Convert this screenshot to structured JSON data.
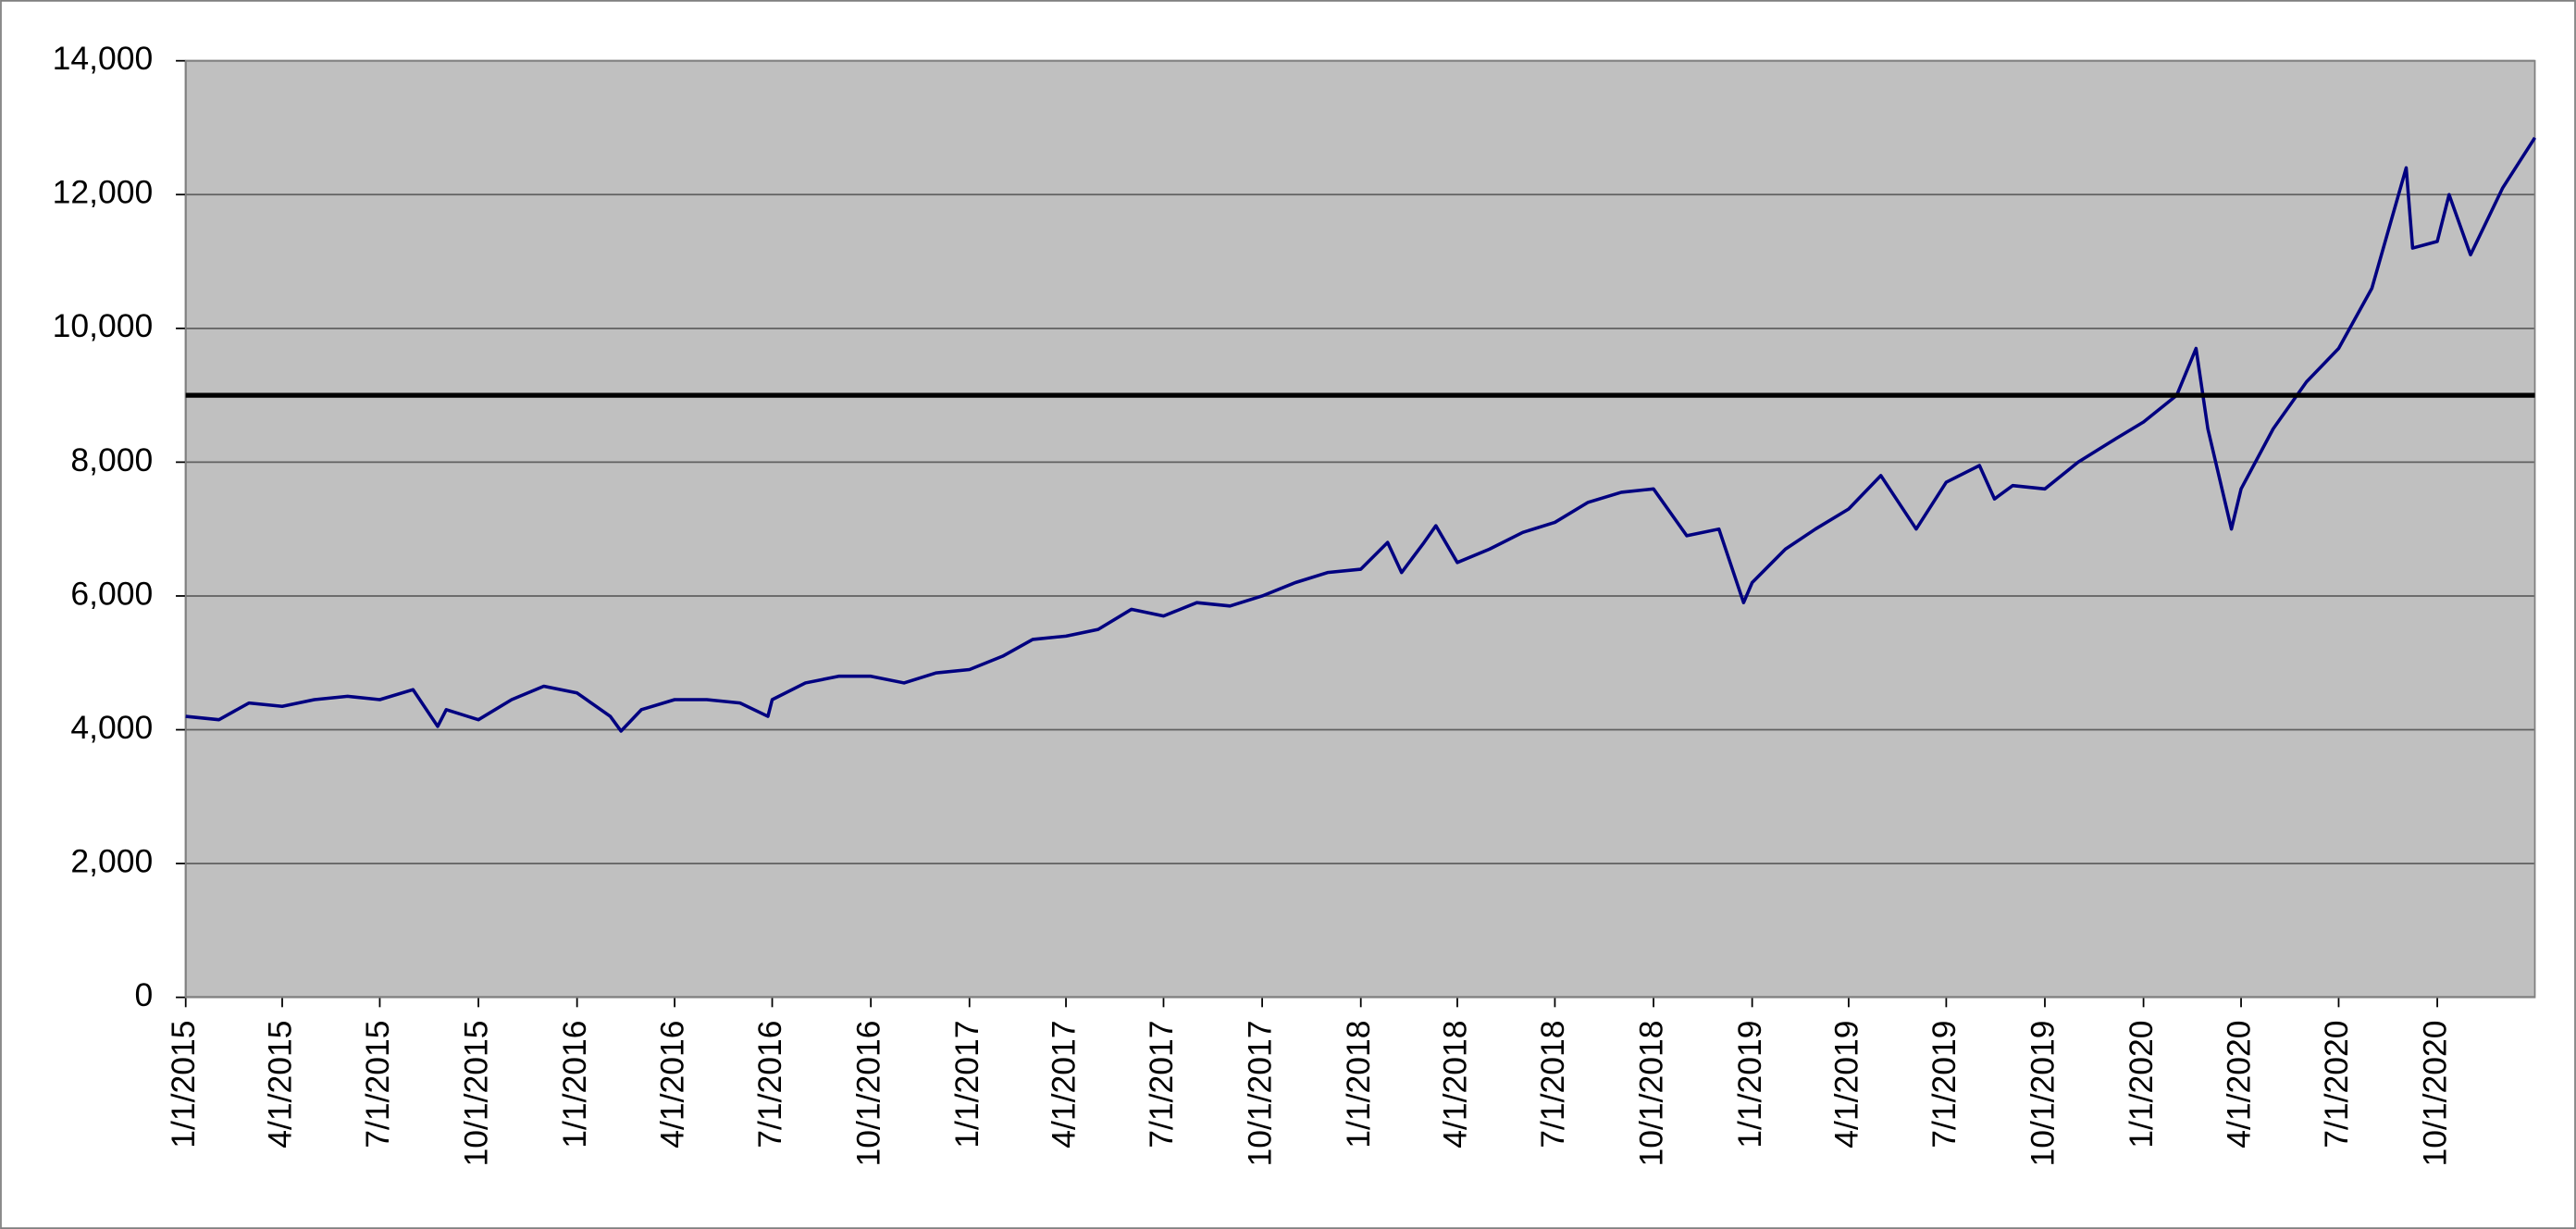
{
  "chart_data": {
    "type": "line",
    "x": [
      "1/1/2015",
      "2/1/2015",
      "3/1/2015",
      "4/1/2015",
      "5/1/2015",
      "6/1/2015",
      "7/1/2015",
      "8/1/2015",
      "8/24/2015",
      "9/1/2015",
      "10/1/2015",
      "11/1/2015",
      "12/1/2015",
      "1/1/2016",
      "2/1/2016",
      "2/11/2016",
      "3/1/2016",
      "4/1/2016",
      "5/1/2016",
      "6/1/2016",
      "6/27/2016",
      "7/1/2016",
      "8/1/2016",
      "9/1/2016",
      "10/1/2016",
      "11/1/2016",
      "12/1/2016",
      "1/1/2017",
      "2/1/2017",
      "3/1/2017",
      "4/1/2017",
      "5/1/2017",
      "6/1/2017",
      "7/1/2017",
      "8/1/2017",
      "9/1/2017",
      "10/1/2017",
      "11/1/2017",
      "12/1/2017",
      "1/1/2018",
      "1/26/2018",
      "2/8/2018",
      "3/1/2018",
      "3/12/2018",
      "4/1/2018",
      "5/1/2018",
      "6/1/2018",
      "7/1/2018",
      "8/1/2018",
      "9/1/2018",
      "10/1/2018",
      "11/1/2018",
      "12/1/2018",
      "12/24/2018",
      "1/1/2019",
      "2/1/2019",
      "3/1/2019",
      "4/1/2019",
      "5/1/2019",
      "6/3/2019",
      "7/1/2019",
      "8/1/2019",
      "8/15/2019",
      "9/1/2019",
      "10/1/2019",
      "11/1/2019",
      "12/1/2019",
      "1/1/2020",
      "2/1/2020",
      "2/19/2020",
      "3/1/2020",
      "3/23/2020",
      "4/1/2020",
      "5/1/2020",
      "6/1/2020",
      "7/1/2020",
      "8/1/2020",
      "9/2/2020",
      "9/8/2020",
      "10/1/2020",
      "10/12/2020",
      "11/1/2020",
      "12/1/2020",
      "12/31/2020"
    ],
    "series": [
      {
        "color": "#000080",
        "values": [
          4200,
          4150,
          4400,
          4350,
          4450,
          4500,
          4450,
          4600,
          4050,
          4300,
          4150,
          4450,
          4650,
          4550,
          4200,
          3980,
          4300,
          4450,
          4450,
          4400,
          4200,
          4450,
          4700,
          4800,
          4800,
          4700,
          4850,
          4900,
          5100,
          5350,
          5400,
          5500,
          5800,
          5700,
          5900,
          5850,
          6000,
          6200,
          6350,
          6400,
          6800,
          6350,
          6800,
          7050,
          6500,
          6700,
          6950,
          7100,
          7400,
          7550,
          7600,
          6900,
          7000,
          5900,
          6200,
          6700,
          7000,
          7300,
          7800,
          7000,
          7700,
          7950,
          7450,
          7650,
          7600,
          8000,
          8300,
          8600,
          9000,
          9700,
          8500,
          7000,
          7600,
          8500,
          9200,
          9700,
          10600,
          12400,
          11200,
          11300,
          12000,
          11100,
          12100,
          12850
        ]
      }
    ],
    "reference_line": {
      "value": 9000,
      "color": "#000000"
    },
    "xlim": [
      "1/1/2015",
      "12/31/2020"
    ],
    "xticks": [
      "1/1/2015",
      "4/1/2015",
      "7/1/2015",
      "10/1/2015",
      "1/1/2016",
      "4/1/2016",
      "7/1/2016",
      "10/1/2016",
      "1/1/2017",
      "4/1/2017",
      "7/1/2017",
      "10/1/2017",
      "1/1/2018",
      "4/1/2018",
      "7/1/2018",
      "10/1/2018",
      "1/1/2019",
      "4/1/2019",
      "7/1/2019",
      "10/1/2019",
      "1/1/2020",
      "4/1/2020",
      "7/1/2020",
      "10/1/2020"
    ],
    "ylim": [
      0,
      14000
    ],
    "yticks": [
      0,
      {
        "value": 2000,
        "label": "2,000"
      },
      {
        "value": 4000,
        "label": "4,000"
      },
      {
        "value": 6000,
        "label": "6,000"
      },
      {
        "value": 8000,
        "label": "8,000"
      },
      {
        "value": 10000,
        "label": "10,000"
      },
      {
        "value": 12000,
        "label": "12,000"
      },
      {
        "value": 14000,
        "label": "14,000"
      }
    ],
    "grid": true,
    "plot_background": "#c0c0c0"
  }
}
